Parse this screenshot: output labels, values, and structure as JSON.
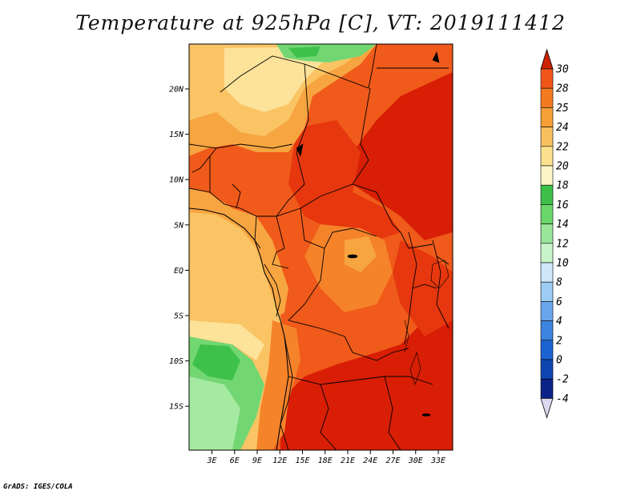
{
  "title": "Temperature at 925hPa [C], VT: 2019111412",
  "credit": "GrADS: IGES/COLA",
  "map": {
    "lat_labels": [
      "20N",
      "15N",
      "10N",
      "5N",
      "EQ",
      "5S",
      "10S",
      "15S"
    ],
    "lon_labels": [
      "3E",
      "6E",
      "9E",
      "12E",
      "15E",
      "18E",
      "21E",
      "24E",
      "27E",
      "30E",
      "33E"
    ]
  },
  "colorbar": {
    "levels": [
      "30",
      "28",
      "25",
      "24",
      "22",
      "20",
      "18",
      "16",
      "14",
      "12",
      "10",
      "8",
      "6",
      "4",
      "2",
      "0",
      "-2",
      "-4"
    ],
    "colors": [
      "#e33a0f",
      "#f0561a",
      "#f47a22",
      "#f5a035",
      "#f7c160",
      "#fbe08f",
      "#fdf5c8",
      "#3ebf49",
      "#6bd66b",
      "#9be59b",
      "#c9f3c9",
      "#cfe7fb",
      "#9ccbf3",
      "#6aa6ea",
      "#3d83e0",
      "#1c63d2",
      "#0e45b0",
      "#0b2286",
      "#060a55"
    ],
    "top_color": "#cc2200",
    "bottom_color": "#ddd8f0"
  },
  "legend_palette": {
    "t30plus": "#d81e05",
    "t28": "#e6370e",
    "t25": "#f05a1a",
    "t24": "#f5832a",
    "t22": "#f7a540",
    "t20": "#fac464",
    "t18": "#fde29a",
    "t16": "#3ec14a",
    "t14": "#72d772",
    "t12": "#a6e9a1"
  }
}
